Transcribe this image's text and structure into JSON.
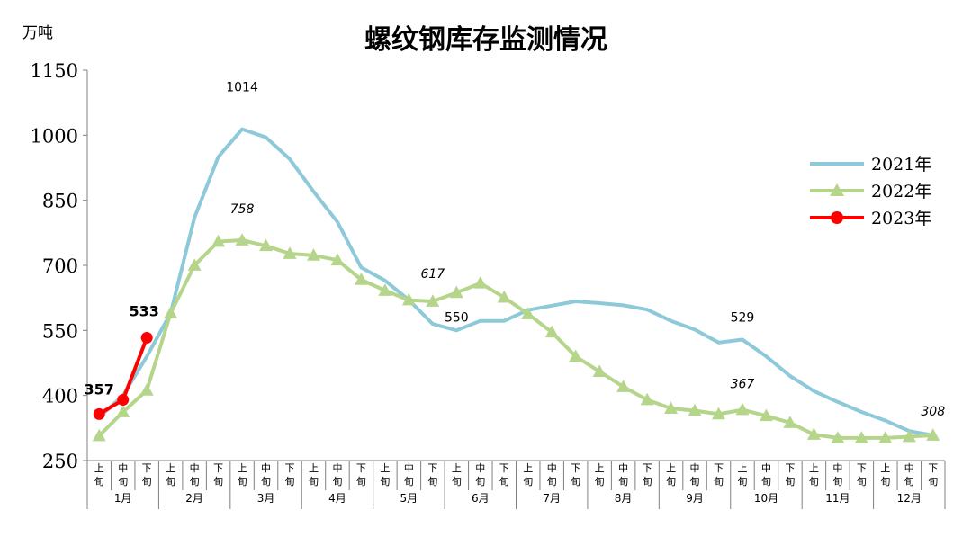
{
  "chart_data": {
    "type": "line",
    "title": "螺纹钢库存监测情况",
    "unit": "万吨",
    "ylim": [
      250,
      1150
    ],
    "yticks": [
      250,
      400,
      550,
      700,
      850,
      1000,
      1150
    ],
    "ytick_labels": [
      "250",
      "400",
      "550",
      "700",
      "850",
      "1000",
      "1150"
    ],
    "period_labels": [
      "上旬",
      "中旬",
      "下旬"
    ],
    "month_labels": [
      "1月",
      "2月",
      "3月",
      "4月",
      "5月",
      "6月",
      "7月",
      "8月",
      "9月",
      "10月",
      "11月",
      "12月"
    ],
    "legend_position": "right",
    "series": [
      {
        "name": "2021年",
        "color": "#8ec9da",
        "marker": "none",
        "values": [
          350,
          400,
          490,
          590,
          810,
          950,
          1014,
          995,
          945,
          870,
          800,
          695,
          665,
          620,
          565,
          550,
          572,
          572,
          597,
          607,
          617,
          613,
          608,
          598,
          572,
          552,
          522,
          529,
          490,
          445,
          410,
          385,
          362,
          342,
          318,
          308
        ]
      },
      {
        "name": "2022年",
        "color": "#b5d58b",
        "marker": "triangle",
        "values": [
          307,
          362,
          412,
          590,
          700,
          755,
          758,
          745,
          727,
          723,
          712,
          667,
          642,
          620,
          617,
          637,
          659,
          626,
          588,
          546,
          490,
          455,
          420,
          390,
          370,
          365,
          357,
          367,
          353,
          337,
          310,
          302,
          302,
          302,
          305,
          308
        ]
      },
      {
        "name": "2023年",
        "color": "#ff0000",
        "marker": "circle",
        "values": [
          357,
          390,
          533
        ]
      }
    ],
    "annotations": [
      {
        "text": "1014",
        "series": "2021年",
        "index": 6,
        "style": "normal"
      },
      {
        "text": "550",
        "series": "2021年",
        "index": 15,
        "style": "normal"
      },
      {
        "text": "529",
        "series": "2021年",
        "index": 27,
        "style": "normal"
      },
      {
        "text": "758",
        "series": "2022年",
        "index": 6,
        "style": "italic"
      },
      {
        "text": "617",
        "series": "2022年",
        "index": 14,
        "style": "italic"
      },
      {
        "text": "367",
        "series": "2022年",
        "index": 27,
        "style": "italic"
      },
      {
        "text": "308",
        "series": "2022年",
        "index": 35,
        "style": "italic"
      },
      {
        "text": "357",
        "series": "2023年",
        "index": 0,
        "style": "bold"
      },
      {
        "text": "533",
        "series": "2023年",
        "index": 2,
        "style": "bold"
      }
    ]
  }
}
